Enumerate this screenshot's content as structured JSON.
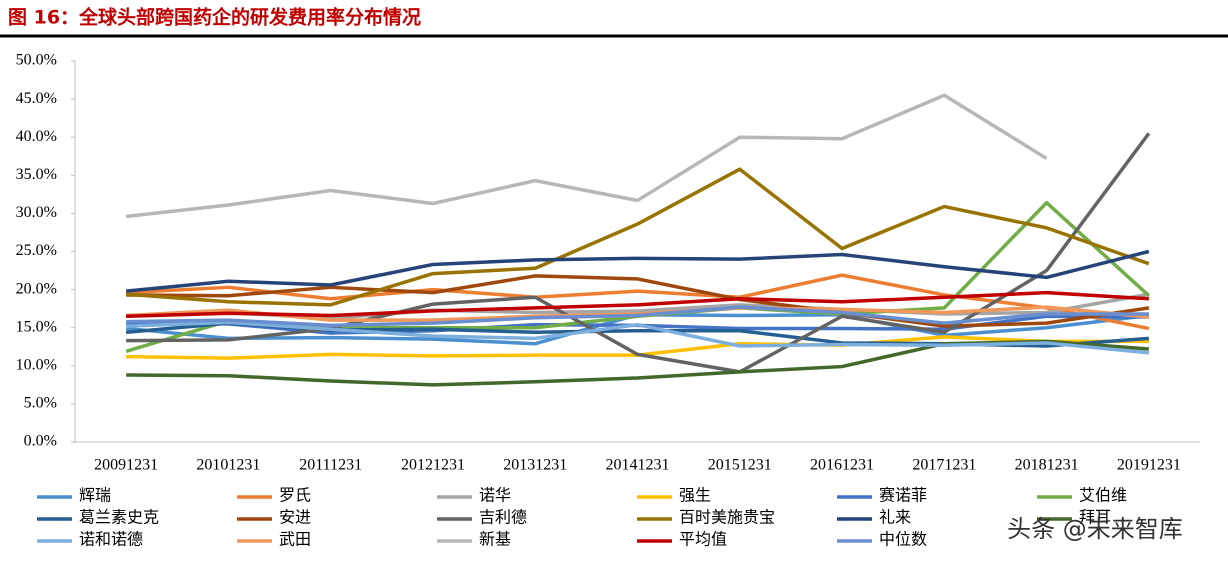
{
  "chart_data": {
    "type": "line",
    "title": "图 16：全球头部跨国药企的研发费用率分布情况",
    "categories": [
      "20091231",
      "20101231",
      "20111231",
      "20121231",
      "20131231",
      "20141231",
      "20151231",
      "20161231",
      "20171231",
      "20181231",
      "20191231"
    ],
    "ylim": [
      0,
      50
    ],
    "yticks": [
      {
        "value": 0,
        "label": "0.0%"
      },
      {
        "value": 5,
        "label": "5.0%"
      },
      {
        "value": 10,
        "label": "10.0%"
      },
      {
        "value": 15,
        "label": "15.0%"
      },
      {
        "value": 20,
        "label": "20.0%"
      },
      {
        "value": 25,
        "label": "25.0%"
      },
      {
        "value": 30,
        "label": "30.0%"
      },
      {
        "value": 35,
        "label": "35.0%"
      },
      {
        "value": 40,
        "label": "40.0%"
      },
      {
        "value": 45,
        "label": "45.0%"
      },
      {
        "value": 50,
        "label": "50.0%"
      }
    ],
    "grid": false,
    "series": [
      {
        "name": "辉瑞",
        "color": "#4a90d0",
        "values": [
          14.9,
          13.6,
          13.7,
          13.5,
          12.9,
          16.7,
          16.6,
          16.7,
          14.0,
          15.0,
          16.6
        ]
      },
      {
        "name": "罗氏",
        "color": "#ed7d31",
        "values": [
          19.6,
          20.3,
          18.8,
          20.0,
          19.0,
          19.8,
          19.0,
          21.9,
          19.3,
          17.6,
          14.9
        ]
      },
      {
        "name": "诺华",
        "color": "#a5a5a5",
        "values": [
          16.6,
          17.0,
          16.2,
          17.3,
          17.0,
          17.2,
          18.0,
          17.4,
          16.8,
          17.0,
          19.4
        ]
      },
      {
        "name": "强生",
        "color": "#ffc000",
        "values": [
          11.2,
          11.0,
          11.5,
          11.3,
          11.4,
          11.4,
          12.9,
          12.7,
          13.8,
          13.2,
          13.2
        ]
      },
      {
        "name": "赛诺菲",
        "color": "#4472c4",
        "values": [
          15.6,
          15.5,
          14.3,
          14.6,
          15.4,
          15.3,
          14.9,
          14.9,
          14.8,
          16.5,
          16.4
        ]
      },
      {
        "name": "艾伯维",
        "color": "#70ad47",
        "values": [
          11.9,
          15.9,
          15.0,
          15.0,
          15.0,
          16.5,
          17.6,
          16.8,
          17.6,
          31.4,
          19.2
        ]
      },
      {
        "name": "葛兰素史克",
        "color": "#255e91",
        "values": [
          14.4,
          15.6,
          14.7,
          14.8,
          14.4,
          14.6,
          14.6,
          13.0,
          12.9,
          12.6,
          13.6
        ]
      },
      {
        "name": "安进",
        "color": "#9e480e",
        "values": [
          19.3,
          19.2,
          20.3,
          19.6,
          21.8,
          21.4,
          18.7,
          17.0,
          15.2,
          15.6,
          17.6
        ]
      },
      {
        "name": "吉利德",
        "color": "#636363",
        "values": [
          13.3,
          13.4,
          14.9,
          18.1,
          19.0,
          11.5,
          9.2,
          16.5,
          14.4,
          22.5,
          40.5
        ]
      },
      {
        "name": "百时美施贵宝",
        "color": "#997300",
        "values": [
          19.4,
          18.4,
          18.0,
          22.1,
          22.8,
          28.6,
          35.8,
          25.4,
          30.9,
          28.1,
          23.4
        ]
      },
      {
        "name": "礼来",
        "color": "#264478",
        "values": [
          19.8,
          21.1,
          20.6,
          23.3,
          23.9,
          24.1,
          24.0,
          24.6,
          23.0,
          21.6,
          25.0
        ]
      },
      {
        "name": "拜耳",
        "color": "#43682b",
        "values": [
          8.8,
          8.7,
          8.0,
          7.5,
          7.9,
          8.4,
          9.2,
          9.9,
          12.9,
          13.2,
          12.2
        ]
      },
      {
        "name": "诺和诺德",
        "color": "#7cafdd",
        "values": [
          15.2,
          15.7,
          14.8,
          13.9,
          13.6,
          15.4,
          12.6,
          12.8,
          12.7,
          13.0,
          11.7
        ]
      },
      {
        "name": "武田",
        "color": "#f1975a",
        "values": [
          16.6,
          17.3,
          16.0,
          16.0,
          16.5,
          16.8,
          17.6,
          17.4,
          17.0,
          17.7,
          16.4
        ]
      },
      {
        "name": "新基",
        "color": "#b7b7b7",
        "values": [
          29.6,
          31.1,
          33.0,
          31.3,
          34.3,
          31.7,
          40.0,
          39.8,
          45.5,
          37.2,
          null
        ]
      },
      {
        "name": "平均值",
        "color": "#c00000",
        "values": [
          16.5,
          16.9,
          16.6,
          17.2,
          17.6,
          18.0,
          18.8,
          18.4,
          19.0,
          19.6,
          18.8
        ]
      },
      {
        "name": "中位数",
        "color": "#698ed0",
        "values": [
          15.8,
          16.0,
          15.3,
          15.6,
          16.3,
          16.6,
          17.7,
          17.0,
          15.6,
          16.8,
          16.8
        ]
      }
    ],
    "watermark": "头条 @未来智库"
  }
}
